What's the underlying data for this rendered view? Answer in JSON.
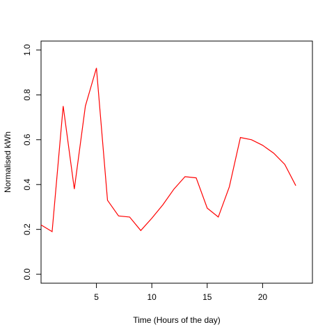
{
  "chart_data": {
    "type": "line",
    "title": "",
    "xlabel": "Time (Hours of the day)",
    "ylabel": "Normalised kWh",
    "xlim": [
      0,
      24.5
    ],
    "ylim": [
      -0.04,
      1.04
    ],
    "x_ticks": [
      5,
      10,
      15,
      20
    ],
    "y_ticks": [
      0.0,
      0.2,
      0.4,
      0.6,
      0.8,
      1.0
    ],
    "x_tick_labels": [
      "5",
      "10",
      "15",
      "20"
    ],
    "y_tick_labels": [
      "0.0",
      "0.2",
      "0.4",
      "0.6",
      "0.8",
      "1.0"
    ],
    "grid": false,
    "series": [
      {
        "color": "#ff0000",
        "x": [
          0,
          1,
          2,
          3,
          4,
          5,
          6,
          7,
          8,
          9,
          10,
          11,
          12,
          13,
          14,
          15,
          16,
          17,
          18,
          19,
          20,
          21,
          22,
          23
        ],
        "y": [
          0.22,
          0.19,
          0.75,
          0.38,
          0.75,
          0.92,
          0.33,
          0.26,
          0.255,
          0.195,
          0.25,
          0.31,
          0.38,
          0.435,
          0.43,
          0.295,
          0.255,
          0.39,
          0.61,
          0.6,
          0.575,
          0.54,
          0.49,
          0.395
        ]
      }
    ]
  }
}
